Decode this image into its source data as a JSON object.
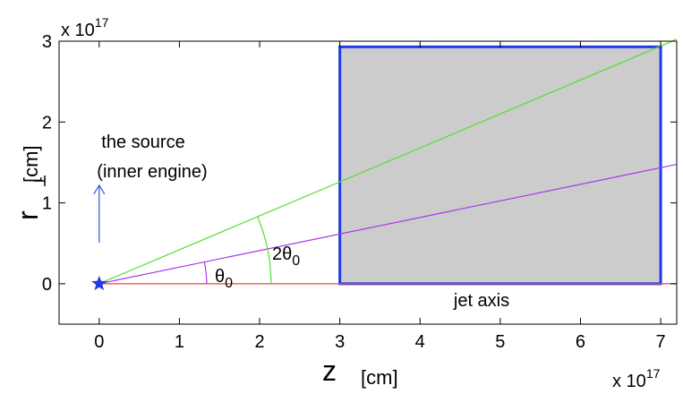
{
  "chart_data": {
    "type": "diagram",
    "xlabel": "z",
    "xunit": "[cm]",
    "ylabel": "r",
    "yunit": "[cm]",
    "x_scale_label": {
      "base": "x 10",
      "power": "17"
    },
    "y_scale_label": {
      "base": "x 10",
      "power": "17"
    },
    "xlim": [
      -0.5,
      7.2
    ],
    "ylim": [
      -0.5,
      3
    ],
    "x_ticks": [
      "0",
      "1",
      "2",
      "3",
      "4",
      "5",
      "6",
      "7"
    ],
    "y_ticks": [
      "0",
      "1",
      "2",
      "3"
    ],
    "source_label_line1": "the source",
    "source_label_line2": "(inner engine)",
    "source_point": {
      "x": 0,
      "y": 0
    },
    "jet_axis_label": "jet axis",
    "region": {
      "x": [
        3,
        7
      ],
      "y": [
        0,
        2.93
      ]
    },
    "lines": [
      {
        "slope": 0.42
      },
      {
        "slope": 0.205
      },
      {
        "slope": 0
      }
    ],
    "angle_labels": {
      "theta": "θ",
      "theta_sub": "0",
      "two_theta": "2θ",
      "two_theta_sub": "0"
    },
    "colors": {
      "green": "#55dd33",
      "purple": "#aa33ee",
      "red": "#ee4444",
      "blue": "#1f3be6",
      "region_fill": "#cccccc",
      "arrow": "#3355dd"
    }
  }
}
